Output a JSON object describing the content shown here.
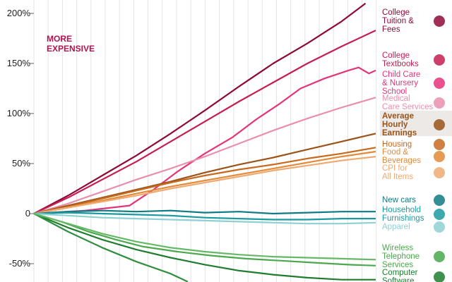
{
  "chart_data": {
    "type": "line",
    "ylim": [
      -68,
      213
    ],
    "xlim": [
      0,
      100
    ],
    "yticks": [
      {
        "value": 200,
        "label": "200%"
      },
      {
        "value": 150,
        "label": "150%"
      },
      {
        "value": 100,
        "label": "100%"
      },
      {
        "value": 50,
        "label": "50%"
      },
      {
        "value": 0,
        "label": "0"
      },
      {
        "value": -50,
        "label": "-50%"
      }
    ],
    "grid": "vertical",
    "annotations": [
      {
        "lines": [
          "MORE",
          "EXPENSIVE"
        ],
        "color": "#b3124f"
      }
    ],
    "series": [
      {
        "name": "College Tuition & Fees",
        "label_lines": [
          "College",
          "Tuition &",
          "Fees"
        ],
        "color": "#8e0a3a",
        "icon": "graduation-cap-icon",
        "points": [
          [
            0,
            0
          ],
          [
            10,
            18
          ],
          [
            20,
            38
          ],
          [
            30,
            58
          ],
          [
            40,
            80
          ],
          [
            50,
            103
          ],
          [
            60,
            127
          ],
          [
            70,
            150
          ],
          [
            80,
            170
          ],
          [
            90,
            192
          ],
          [
            97,
            210
          ]
        ]
      },
      {
        "name": "College Textbooks",
        "label_lines": [
          "College",
          "Textbooks"
        ],
        "color": "#c51f52",
        "icon": "books-icon",
        "points": [
          [
            0,
            0
          ],
          [
            10,
            16
          ],
          [
            20,
            34
          ],
          [
            30,
            52
          ],
          [
            40,
            72
          ],
          [
            50,
            92
          ],
          [
            60,
            112
          ],
          [
            70,
            131
          ],
          [
            80,
            150
          ],
          [
            90,
            167
          ],
          [
            100,
            183
          ]
        ]
      },
      {
        "name": "Child Care & Nursery School",
        "label_lines": [
          "Child Care",
          "& Nursery",
          "School"
        ],
        "color": "#e4347a",
        "icon": "child-care-icon",
        "points": [
          [
            0,
            0
          ],
          [
            15,
            3
          ],
          [
            28,
            8
          ],
          [
            35,
            24
          ],
          [
            42,
            42
          ],
          [
            50,
            60
          ],
          [
            58,
            76
          ],
          [
            65,
            94
          ],
          [
            72,
            110
          ],
          [
            78,
            125
          ],
          [
            85,
            135
          ],
          [
            92,
            143
          ],
          [
            95,
            146
          ],
          [
            98,
            140
          ],
          [
            100,
            143
          ]
        ]
      },
      {
        "name": "Medical Care Services",
        "label_lines": [
          "Medical",
          "Care Services"
        ],
        "color": "#e98fae",
        "icon": "medical-icon",
        "points": [
          [
            0,
            0
          ],
          [
            10,
            10
          ],
          [
            20,
            22
          ],
          [
            30,
            34
          ],
          [
            40,
            45
          ],
          [
            50,
            57
          ],
          [
            60,
            70
          ],
          [
            70,
            83
          ],
          [
            80,
            95
          ],
          [
            90,
            106
          ],
          [
            100,
            116
          ]
        ]
      },
      {
        "name": "Average Hourly Earnings",
        "label_lines": [
          "Average",
          "Hourly",
          "Earnings"
        ],
        "color": "#9a5419",
        "icon": "money-clock-icon",
        "points": [
          [
            0,
            0
          ],
          [
            10,
            8
          ],
          [
            20,
            16
          ],
          [
            30,
            24
          ],
          [
            40,
            32
          ],
          [
            50,
            41
          ],
          [
            60,
            49
          ],
          [
            70,
            56
          ],
          [
            80,
            64
          ],
          [
            90,
            72
          ],
          [
            100,
            80
          ]
        ]
      },
      {
        "name": "Housing",
        "label_lines": [
          "Housing"
        ],
        "color": "#c86a1e",
        "icon": "house-icon",
        "points": [
          [
            0,
            0
          ],
          [
            10,
            7
          ],
          [
            20,
            15
          ],
          [
            30,
            23
          ],
          [
            40,
            31
          ],
          [
            50,
            38
          ],
          [
            60,
            44
          ],
          [
            70,
            49
          ],
          [
            80,
            55
          ],
          [
            90,
            60
          ],
          [
            100,
            66
          ]
        ]
      },
      {
        "name": "Food & Beverages",
        "label_lines": [
          "Food &",
          "Beverages"
        ],
        "color": "#e28a37",
        "icon": "food-icon",
        "points": [
          [
            0,
            0
          ],
          [
            10,
            6
          ],
          [
            20,
            13
          ],
          [
            30,
            20
          ],
          [
            40,
            27
          ],
          [
            50,
            33
          ],
          [
            60,
            39
          ],
          [
            70,
            45
          ],
          [
            80,
            51
          ],
          [
            90,
            57
          ],
          [
            100,
            62
          ]
        ]
      },
      {
        "name": "CPI for All Items",
        "label_lines": [
          "CPI for",
          "All Items"
        ],
        "color": "#efaa72",
        "icon": "price-tag-icon",
        "points": [
          [
            0,
            0
          ],
          [
            10,
            6
          ],
          [
            20,
            12
          ],
          [
            30,
            18
          ],
          [
            40,
            25
          ],
          [
            50,
            31
          ],
          [
            60,
            37
          ],
          [
            70,
            43
          ],
          [
            80,
            48
          ],
          [
            90,
            53
          ],
          [
            100,
            57
          ]
        ]
      },
      {
        "name": "New cars",
        "label_lines": [
          "New cars"
        ],
        "color": "#0f7b82",
        "icon": "car-icon",
        "points": [
          [
            0,
            0
          ],
          [
            10,
            2
          ],
          [
            20,
            3
          ],
          [
            30,
            2
          ],
          [
            40,
            3
          ],
          [
            50,
            1
          ],
          [
            60,
            2
          ],
          [
            70,
            0
          ],
          [
            80,
            1
          ],
          [
            90,
            2
          ],
          [
            100,
            2
          ]
        ]
      },
      {
        "name": "Household Furnishings",
        "label_lines": [
          "Household",
          "Furnishings"
        ],
        "color": "#1a9aa0",
        "icon": "furniture-icon",
        "points": [
          [
            0,
            0
          ],
          [
            10,
            1
          ],
          [
            20,
            0
          ],
          [
            30,
            -1
          ],
          [
            40,
            -2
          ],
          [
            50,
            -4
          ],
          [
            60,
            -5
          ],
          [
            70,
            -6
          ],
          [
            80,
            -6
          ],
          [
            90,
            -5
          ],
          [
            100,
            -5
          ]
        ]
      },
      {
        "name": "Apparel",
        "label_lines": [
          "Apparel"
        ],
        "color": "#8fd0d2",
        "icon": "shirt-icon",
        "points": [
          [
            0,
            0
          ],
          [
            10,
            -2
          ],
          [
            20,
            -4
          ],
          [
            30,
            -5
          ],
          [
            40,
            -6
          ],
          [
            50,
            -7
          ],
          [
            60,
            -8
          ],
          [
            70,
            -9
          ],
          [
            80,
            -10
          ],
          [
            90,
            -10
          ],
          [
            100,
            -9
          ]
        ]
      },
      {
        "name": "Wireless Telephone Services",
        "label_lines": [
          "Wireless",
          "Telephone",
          "Services"
        ],
        "color": "#4aa84d",
        "icon": "phone-icon",
        "points": [
          [
            0,
            0
          ],
          [
            8,
            -8
          ],
          [
            16,
            -18
          ],
          [
            24,
            -26
          ],
          [
            32,
            -33
          ],
          [
            42,
            -38
          ],
          [
            52,
            -42
          ],
          [
            62,
            -45
          ],
          [
            72,
            -47
          ],
          [
            82,
            -49
          ],
          [
            92,
            -51
          ],
          [
            100,
            -52
          ]
        ]
      },
      {
        "name": "Computer Software",
        "label_lines": [
          "Computer",
          "Software"
        ],
        "color": "#1e7d2f",
        "icon": "computer-icon",
        "points": [
          [
            0,
            0
          ],
          [
            10,
            -14
          ],
          [
            20,
            -26
          ],
          [
            30,
            -36
          ],
          [
            40,
            -44
          ],
          [
            50,
            -51
          ],
          [
            60,
            -57
          ],
          [
            70,
            -61
          ],
          [
            80,
            -64
          ],
          [
            90,
            -66
          ],
          [
            100,
            -66
          ]
        ]
      },
      {
        "name": "",
        "label_lines": [],
        "color": "#2f8f3f",
        "icon": "",
        "points": [
          [
            0,
            0
          ],
          [
            10,
            -18
          ],
          [
            20,
            -34
          ],
          [
            30,
            -48
          ],
          [
            40,
            -60
          ],
          [
            45,
            -68
          ]
        ]
      },
      {
        "name": "",
        "label_lines": [],
        "color": "#64b866",
        "icon": "",
        "points": [
          [
            0,
            0
          ],
          [
            10,
            -10
          ],
          [
            20,
            -20
          ],
          [
            30,
            -28
          ],
          [
            40,
            -34
          ],
          [
            50,
            -38
          ],
          [
            60,
            -41
          ],
          [
            70,
            -43
          ],
          [
            80,
            -44
          ],
          [
            90,
            -45
          ],
          [
            100,
            -46
          ]
        ]
      }
    ]
  }
}
